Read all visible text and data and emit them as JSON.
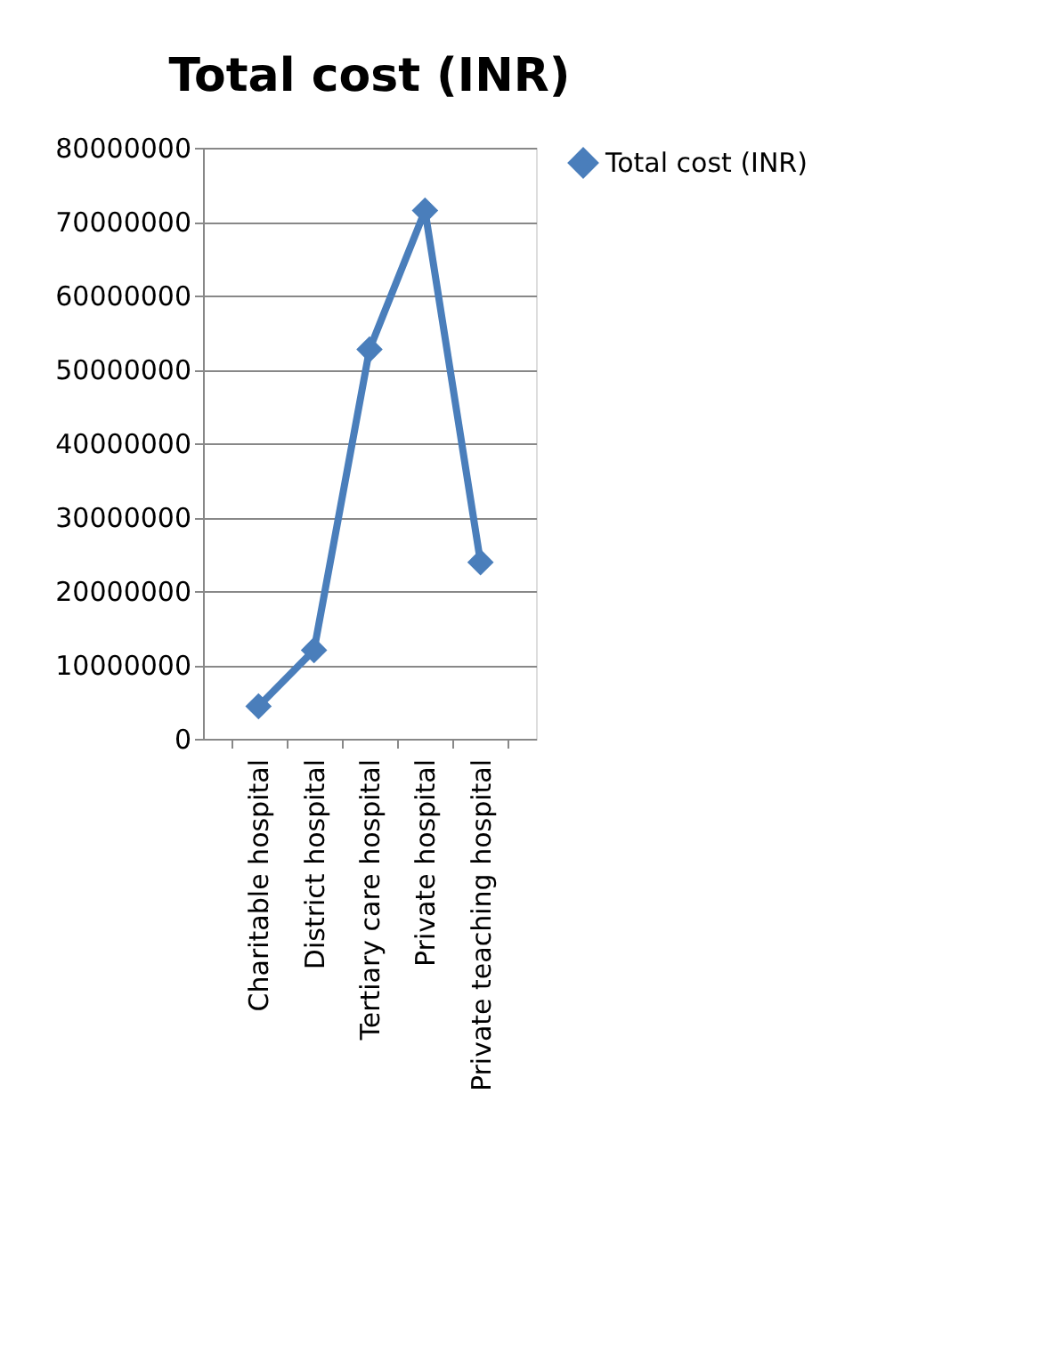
{
  "chart_data": {
    "type": "line",
    "title": "Total cost (INR)",
    "categories": [
      "Charitable hospital",
      "District hospital",
      "Tertiary care hospital",
      "Private hospital",
      "Private teaching hospital"
    ],
    "series": [
      {
        "name": "Total cost (INR)",
        "color": "#4a7ebb",
        "values": [
          4400000,
          12000000,
          52700000,
          71500000,
          23900000
        ]
      }
    ],
    "ylim": [
      0,
      80000000
    ],
    "yticks": [
      0,
      10000000,
      20000000,
      30000000,
      40000000,
      50000000,
      60000000,
      70000000,
      80000000
    ],
    "grid": "y",
    "legend": "right",
    "marker": "diamond",
    "line_style": "solid"
  }
}
